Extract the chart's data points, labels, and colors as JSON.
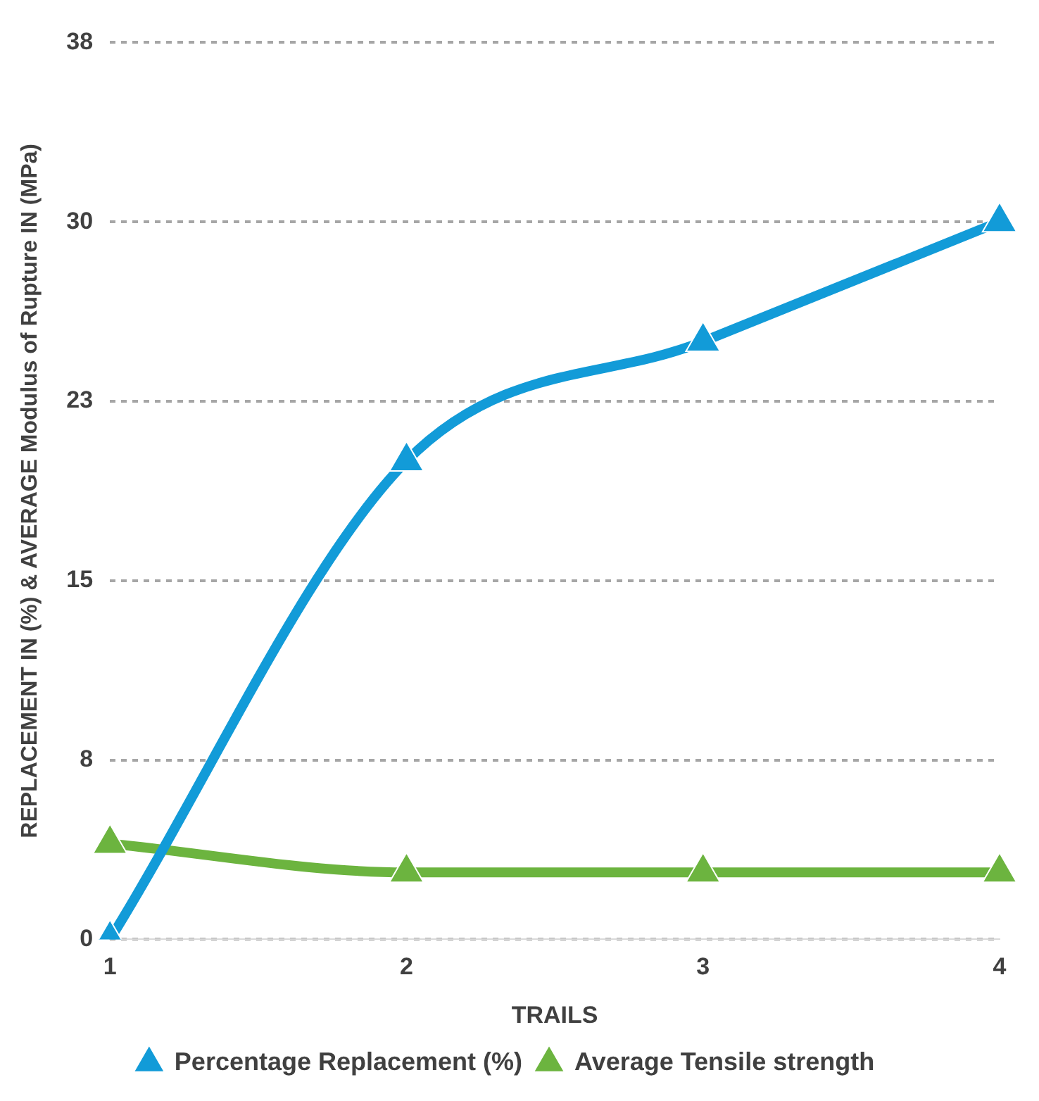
{
  "chart_data": {
    "type": "line",
    "xlabel": "TRAILS",
    "ylabel": "REPLACEMENT IN (%) & AVERAGE Modulus of Rupture IN (MPa)",
    "categories": [
      "1",
      "2",
      "3",
      "4"
    ],
    "series": [
      {
        "name": "Percentage Replacement (%)",
        "color": "#129bd8",
        "values": [
          0,
          20,
          25,
          30
        ]
      },
      {
        "name": "Average Tensile strength",
        "color": "#6cb43f",
        "values": [
          4,
          2.8,
          2.8,
          2.8
        ]
      }
    ],
    "ylim": [
      0,
      37.5
    ],
    "yticks": [
      0,
      {
        "value": 7.5,
        "label": "8"
      },
      {
        "value": 15,
        "label": "15"
      },
      {
        "value": 22.5,
        "label": "23"
      },
      {
        "value": 30,
        "label": "30"
      },
      {
        "value": 37.5,
        "label": "38"
      }
    ],
    "grid": "y",
    "legend": "bottom",
    "marker": "triangle",
    "line_style": "solid"
  }
}
